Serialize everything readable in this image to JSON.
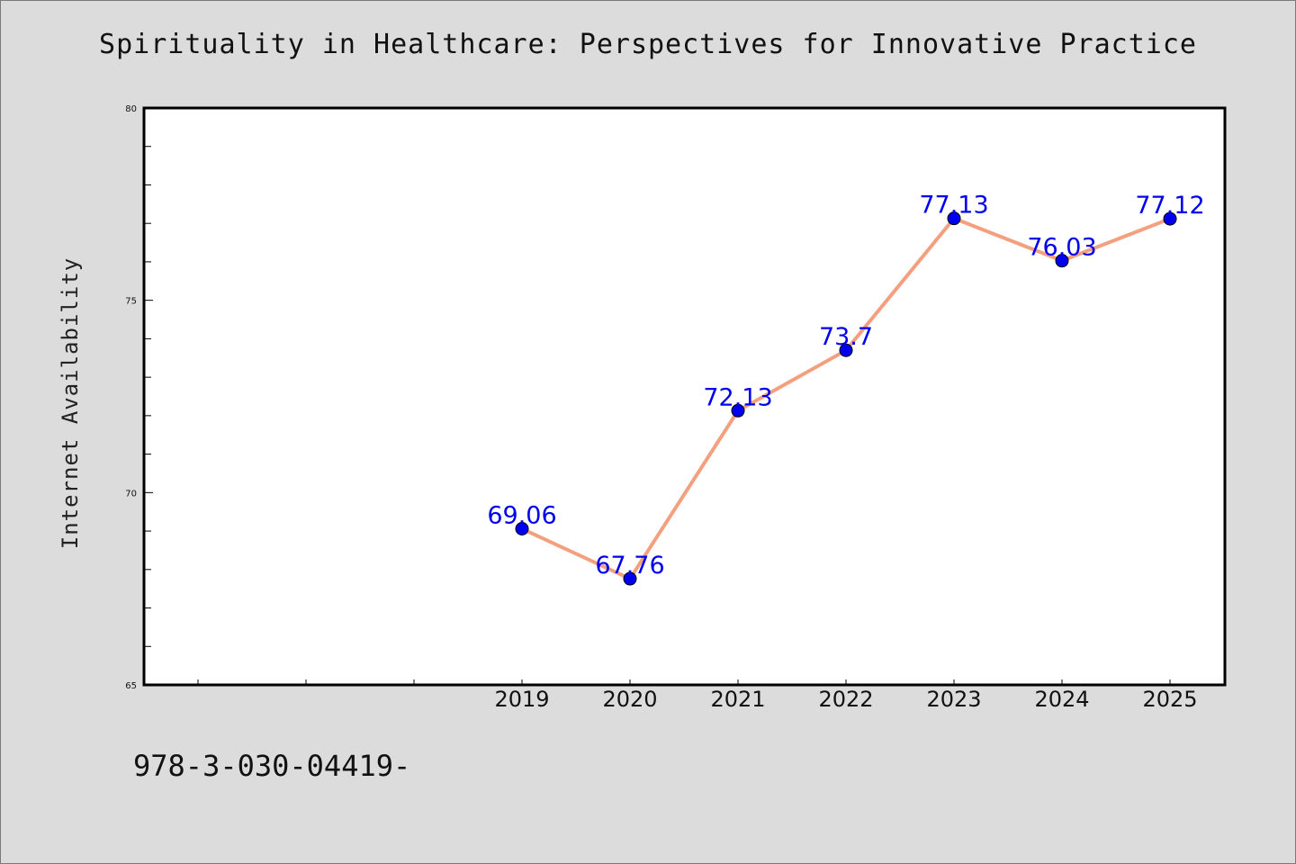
{
  "chart_data": {
    "type": "line",
    "title": "Spirituality in Healthcare: Perspectives for Innovative Practice",
    "xlabel": "",
    "ylabel": "Internet Availability",
    "categories": [
      "2019",
      "2020",
      "2021",
      "2022",
      "2023",
      "2024",
      "2025"
    ],
    "series": [
      {
        "values": [
          69.06,
          67.76,
          72.13,
          73.7,
          77.13,
          76.03,
          77.12
        ],
        "data_labels": [
          "69.06",
          "67.76",
          "72.13",
          "73.7",
          "77.13",
          "76.03",
          "77.12"
        ]
      }
    ],
    "ylim": [
      65,
      80
    ],
    "y_ticks": [
      65,
      70,
      75,
      80
    ],
    "line_color": "#f4a07f",
    "marker_color": "#0000ee",
    "label_color": "#0000ee",
    "grid": false
  },
  "footer": {
    "code": "978-3-030-04419-"
  }
}
